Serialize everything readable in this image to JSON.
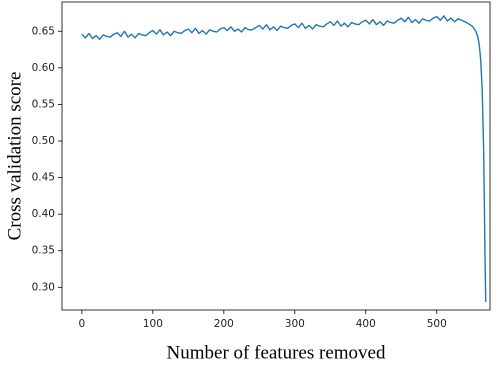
{
  "chart_data": {
    "type": "line",
    "xlabel": "Number of features removed",
    "ylabel": "Cross validation score",
    "x": [
      0,
      5,
      10,
      15,
      20,
      25,
      30,
      35,
      40,
      45,
      50,
      55,
      60,
      65,
      70,
      75,
      80,
      85,
      90,
      95,
      100,
      105,
      110,
      115,
      120,
      125,
      130,
      135,
      140,
      145,
      150,
      155,
      160,
      165,
      170,
      175,
      180,
      185,
      190,
      195,
      200,
      205,
      210,
      215,
      220,
      225,
      230,
      235,
      240,
      245,
      250,
      255,
      260,
      265,
      270,
      275,
      280,
      285,
      290,
      295,
      300,
      305,
      310,
      315,
      320,
      325,
      330,
      335,
      340,
      345,
      350,
      355,
      360,
      365,
      370,
      375,
      380,
      385,
      390,
      395,
      400,
      405,
      410,
      415,
      420,
      425,
      430,
      435,
      440,
      445,
      450,
      455,
      460,
      465,
      470,
      475,
      480,
      485,
      490,
      495,
      500,
      505,
      510,
      515,
      520,
      525,
      530,
      535,
      540,
      545,
      550,
      555,
      558,
      560,
      562,
      564,
      566,
      567,
      568,
      569
    ],
    "series": [
      {
        "color": "#1f77b4",
        "values": [
          0.646,
          0.641,
          0.647,
          0.64,
          0.644,
          0.639,
          0.645,
          0.643,
          0.642,
          0.646,
          0.648,
          0.643,
          0.65,
          0.642,
          0.646,
          0.641,
          0.647,
          0.645,
          0.644,
          0.648,
          0.651,
          0.646,
          0.652,
          0.645,
          0.649,
          0.644,
          0.65,
          0.648,
          0.647,
          0.651,
          0.653,
          0.648,
          0.654,
          0.647,
          0.651,
          0.646,
          0.652,
          0.65,
          0.649,
          0.653,
          0.655,
          0.651,
          0.656,
          0.65,
          0.653,
          0.649,
          0.655,
          0.652,
          0.652,
          0.655,
          0.658,
          0.653,
          0.659,
          0.652,
          0.656,
          0.651,
          0.657,
          0.655,
          0.654,
          0.658,
          0.66,
          0.655,
          0.661,
          0.654,
          0.658,
          0.653,
          0.659,
          0.657,
          0.656,
          0.66,
          0.663,
          0.658,
          0.664,
          0.657,
          0.661,
          0.656,
          0.662,
          0.66,
          0.659,
          0.663,
          0.665,
          0.66,
          0.666,
          0.659,
          0.663,
          0.658,
          0.664,
          0.662,
          0.661,
          0.665,
          0.668,
          0.663,
          0.669,
          0.662,
          0.666,
          0.661,
          0.667,
          0.665,
          0.664,
          0.668,
          0.67,
          0.665,
          0.671,
          0.664,
          0.668,
          0.663,
          0.667,
          0.665,
          0.663,
          0.66,
          0.657,
          0.65,
          0.642,
          0.63,
          0.61,
          0.57,
          0.49,
          0.42,
          0.34,
          0.28
        ]
      }
    ],
    "xlim": [
      -28,
      575
    ],
    "ylim": [
      0.269,
      0.69
    ],
    "xticks": [
      0,
      100,
      200,
      300,
      400,
      500
    ],
    "yticks": [
      {
        "value": 0.3,
        "label": "0.30"
      },
      0.35,
      {
        "value": 0.4,
        "label": "0.40"
      },
      0.45,
      {
        "value": 0.5,
        "label": "0.50"
      },
      0.55,
      {
        "value": 0.6,
        "label": "0.60"
      },
      0.65
    ]
  }
}
